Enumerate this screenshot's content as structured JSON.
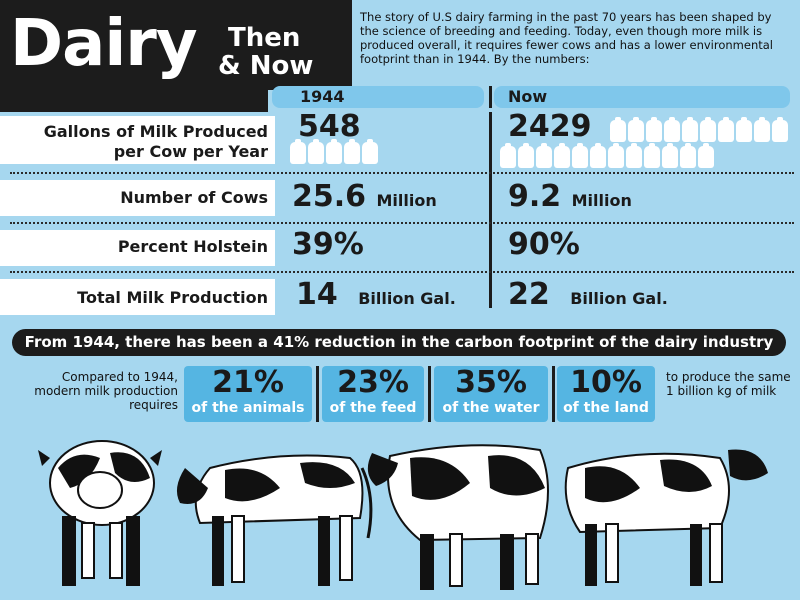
{
  "header": {
    "title_main": "Dairy",
    "title_then": "Then",
    "title_now": "& Now",
    "intro": "The story of U.S dairy farming in the past 70 years has been shaped by the science of breeding and feeding. Today, even though more milk is produced overall, it requires fewer cows and has a lower environmental footprint than in 1944. By the numbers:"
  },
  "columns": {
    "then": "1944",
    "now": "Now"
  },
  "rows": [
    {
      "label_line1": "Gallons of Milk Produced",
      "label_line2": "per Cow per Year",
      "then_value": "548",
      "then_unit": "",
      "now_value": "2429",
      "now_unit": "",
      "then_jugs": 5,
      "now_jugs": 22
    },
    {
      "label_line1": "Number of Cows",
      "then_value": "25.6",
      "then_unit": "Million",
      "now_value": "9.2",
      "now_unit": "Million"
    },
    {
      "label_line1": "Percent Holstein",
      "then_value": "39%",
      "then_unit": "",
      "now_value": "90%",
      "now_unit": ""
    },
    {
      "label_line1": "Total Milk Production",
      "then_value": "14",
      "then_unit": "Billion Gal.",
      "now_value": "22",
      "now_unit": "Billion Gal."
    }
  ],
  "carbon_banner": "From 1944, there has been a 41% reduction in the carbon footprint of the dairy industry",
  "comparison": {
    "lead": "Compared to 1944, modern milk production requires",
    "stats": [
      {
        "pct": "21%",
        "text": "of the animals"
      },
      {
        "pct": "23%",
        "text": "of the feed"
      },
      {
        "pct": "35%",
        "text": "of the water"
      },
      {
        "pct": "10%",
        "text": "of the land"
      }
    ],
    "tail": "to produce the same 1 billion kg of milk"
  },
  "icons": [
    "milk-jug-icon",
    "cow-illustration"
  ],
  "colors": {
    "background": "#a6d7ef",
    "dark": "#1c1c1c",
    "accent_blue": "#55b5e2",
    "header_blue": "#7fc7eb"
  }
}
